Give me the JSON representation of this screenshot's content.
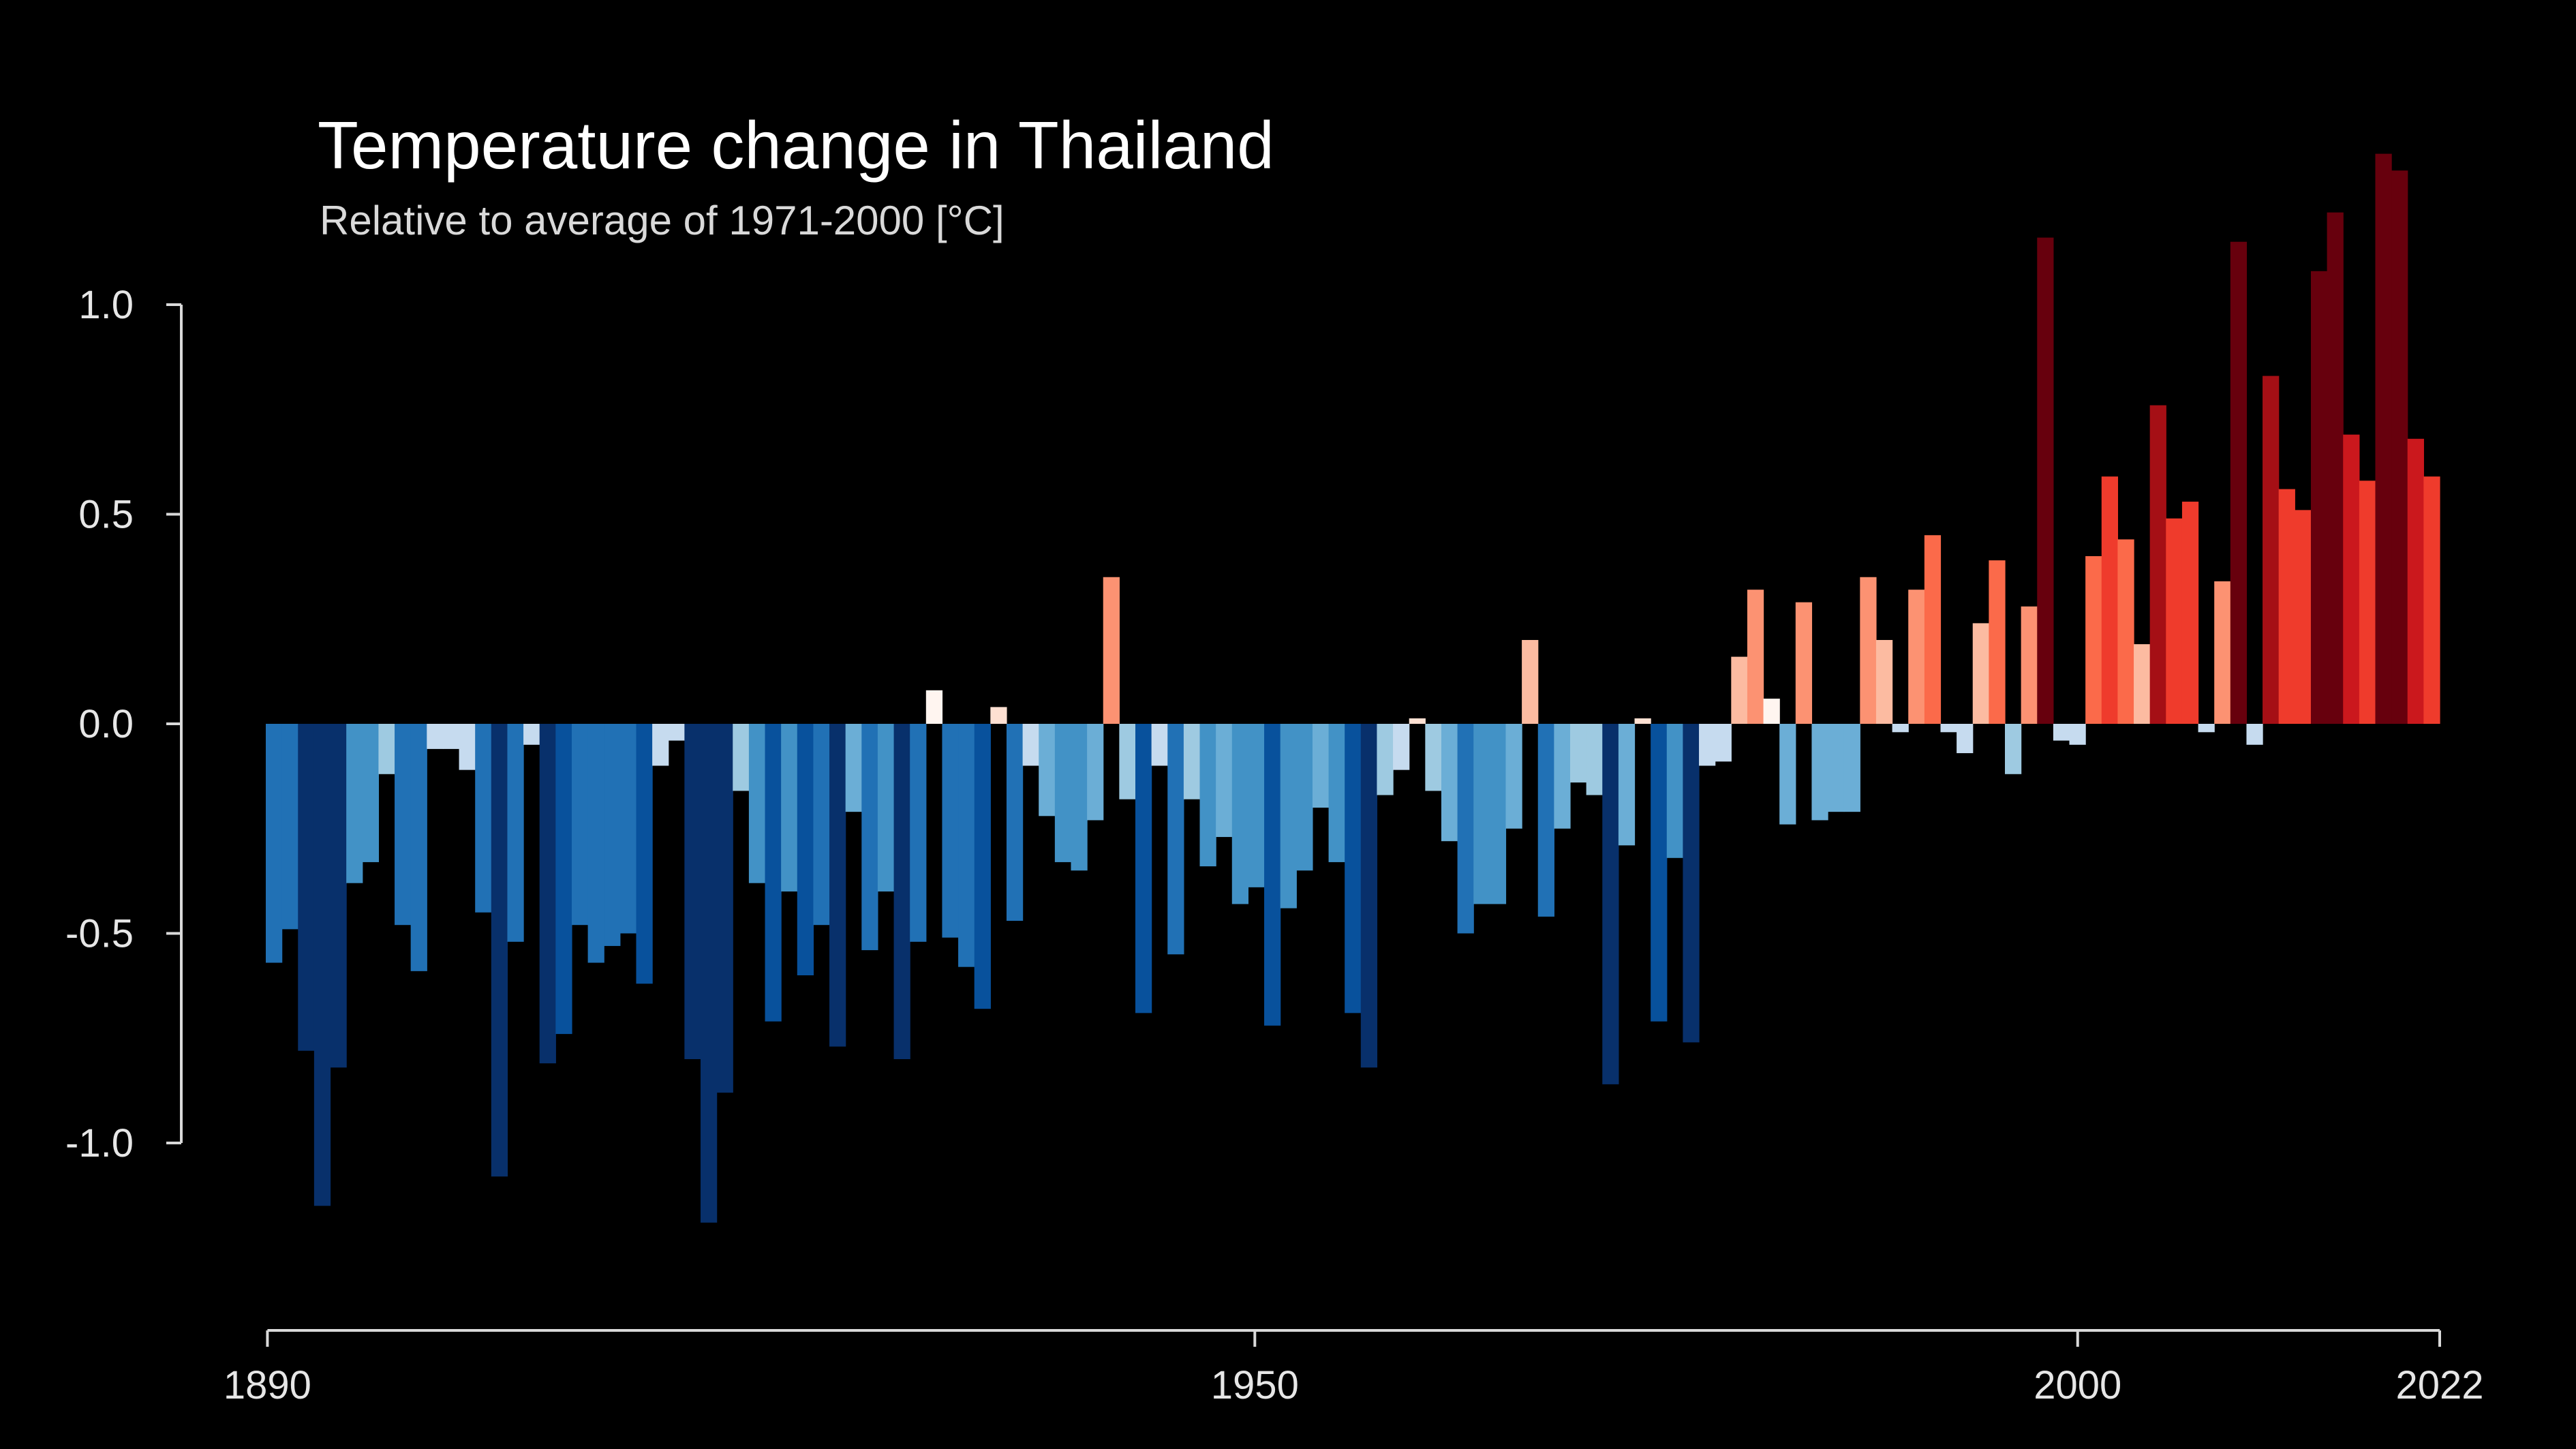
{
  "chart_data": {
    "type": "bar",
    "title": "Temperature change in Thailand",
    "subtitle": "Relative to average of 1971-2000  [°C]",
    "xlabel": "",
    "ylabel": "",
    "x_start": 1890,
    "x_end": 2022,
    "xlim": [
      1889.9,
      2022
    ],
    "ylim": [
      -1.3,
      1.35
    ],
    "grid": false,
    "legend": "none",
    "x_ticks": [
      1890,
      1950,
      2000,
      2022
    ],
    "x_tick_labels": [
      "1890",
      "1950",
      "2000",
      "2022"
    ],
    "y_ticks": [
      1.0,
      0.5,
      0.0,
      -0.5,
      -1.0
    ],
    "y_tick_labels": [
      "1.0",
      "0.5",
      "0.0",
      "-0.5",
      "-1.0"
    ],
    "values": [
      -0.57,
      -0.49,
      -0.78,
      -1.15,
      -0.82,
      -0.38,
      -0.33,
      -0.12,
      -0.48,
      -0.59,
      -0.06,
      -0.06,
      -0.11,
      -0.45,
      -1.08,
      -0.52,
      -0.05,
      -0.81,
      -0.74,
      -0.48,
      -0.57,
      -0.53,
      -0.5,
      -0.62,
      -0.1,
      -0.04,
      -0.8,
      -1.19,
      -0.88,
      -0.16,
      -0.38,
      -0.71,
      -0.4,
      -0.6,
      -0.48,
      -0.77,
      -0.21,
      -0.54,
      -0.4,
      -0.8,
      -0.52,
      0.08,
      -0.51,
      -0.58,
      -0.68,
      0.04,
      -0.47,
      -0.1,
      -0.22,
      -0.33,
      -0.35,
      -0.23,
      0.35,
      -0.18,
      -0.69,
      -0.1,
      -0.55,
      -0.18,
      -0.34,
      -0.27,
      -0.43,
      -0.39,
      -0.72,
      -0.44,
      -0.35,
      -0.2,
      -0.33,
      -0.69,
      -0.82,
      -0.17,
      -0.11,
      0.0,
      -0.16,
      -0.28,
      -0.5,
      -0.43,
      -0.43,
      -0.25,
      0.2,
      -0.46,
      -0.25,
      -0.14,
      -0.17,
      -0.86,
      -0.29,
      0.01,
      -0.71,
      -0.32,
      -0.76,
      -0.1,
      -0.09,
      0.16,
      0.32,
      0.06,
      -0.24,
      0.29,
      -0.23,
      -0.21,
      -0.21,
      0.35,
      0.2,
      -0.02,
      0.32,
      0.45,
      -0.02,
      -0.07,
      0.24,
      0.39,
      -0.12,
      0.28,
      1.16,
      -0.04,
      -0.05,
      0.4,
      0.59,
      0.44,
      0.19,
      0.76,
      0.49,
      0.53,
      -0.02,
      0.34,
      1.15,
      -0.05,
      0.83,
      0.56,
      0.51,
      1.08,
      1.22,
      0.69,
      0.58,
      1.36,
      1.32,
      0.68,
      0.59
    ]
  }
}
